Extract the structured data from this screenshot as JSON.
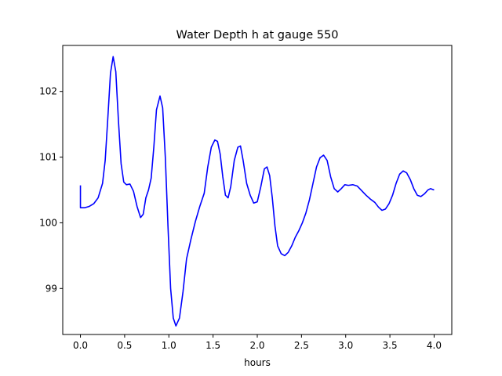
{
  "chart_data": {
    "type": "line",
    "title": "Water Depth h at gauge 550",
    "xlabel": "hours",
    "ylabel": "",
    "xlim": [
      -0.2,
      4.2
    ],
    "ylim": [
      98.3,
      102.7
    ],
    "xticks": [
      0.0,
      0.5,
      1.0,
      1.5,
      2.0,
      2.5,
      3.0,
      3.5,
      4.0
    ],
    "xtick_labels": [
      "0.0",
      "0.5",
      "1.0",
      "1.5",
      "2.0",
      "2.5",
      "3.0",
      "3.5",
      "4.0"
    ],
    "yticks": [
      99,
      100,
      101,
      102
    ],
    "ytick_labels": [
      "99",
      "100",
      "101",
      "102"
    ],
    "grid": false,
    "legend": "none",
    "series": [
      {
        "color": "#0000ff",
        "points": [
          [
            0.0,
            100.57
          ],
          [
            0.0,
            100.23
          ],
          [
            0.05,
            100.23
          ],
          [
            0.1,
            100.25
          ],
          [
            0.15,
            100.29
          ],
          [
            0.2,
            100.38
          ],
          [
            0.25,
            100.6
          ],
          [
            0.28,
            100.95
          ],
          [
            0.31,
            101.6
          ],
          [
            0.34,
            102.28
          ],
          [
            0.37,
            102.53
          ],
          [
            0.4,
            102.3
          ],
          [
            0.43,
            101.55
          ],
          [
            0.46,
            100.9
          ],
          [
            0.49,
            100.62
          ],
          [
            0.52,
            100.58
          ],
          [
            0.56,
            100.59
          ],
          [
            0.6,
            100.48
          ],
          [
            0.64,
            100.25
          ],
          [
            0.68,
            100.08
          ],
          [
            0.71,
            100.13
          ],
          [
            0.74,
            100.38
          ],
          [
            0.77,
            100.5
          ],
          [
            0.8,
            100.68
          ],
          [
            0.83,
            101.15
          ],
          [
            0.86,
            101.72
          ],
          [
            0.9,
            101.93
          ],
          [
            0.93,
            101.75
          ],
          [
            0.96,
            101.0
          ],
          [
            0.99,
            99.95
          ],
          [
            1.02,
            99.0
          ],
          [
            1.05,
            98.55
          ],
          [
            1.08,
            98.43
          ],
          [
            1.12,
            98.55
          ],
          [
            1.16,
            98.95
          ],
          [
            1.2,
            99.45
          ],
          [
            1.25,
            99.75
          ],
          [
            1.3,
            100.02
          ],
          [
            1.35,
            100.25
          ],
          [
            1.4,
            100.45
          ],
          [
            1.44,
            100.85
          ],
          [
            1.48,
            101.15
          ],
          [
            1.52,
            101.26
          ],
          [
            1.55,
            101.24
          ],
          [
            1.58,
            101.05
          ],
          [
            1.61,
            100.7
          ],
          [
            1.64,
            100.42
          ],
          [
            1.67,
            100.38
          ],
          [
            1.7,
            100.55
          ],
          [
            1.74,
            100.95
          ],
          [
            1.78,
            101.15
          ],
          [
            1.81,
            101.17
          ],
          [
            1.84,
            100.95
          ],
          [
            1.88,
            100.6
          ],
          [
            1.92,
            100.42
          ],
          [
            1.96,
            100.3
          ],
          [
            2.0,
            100.32
          ],
          [
            2.04,
            100.55
          ],
          [
            2.08,
            100.82
          ],
          [
            2.11,
            100.85
          ],
          [
            2.14,
            100.72
          ],
          [
            2.17,
            100.38
          ],
          [
            2.2,
            99.95
          ],
          [
            2.23,
            99.65
          ],
          [
            2.27,
            99.53
          ],
          [
            2.31,
            99.5
          ],
          [
            2.35,
            99.55
          ],
          [
            2.39,
            99.65
          ],
          [
            2.43,
            99.78
          ],
          [
            2.47,
            99.88
          ],
          [
            2.51,
            100.0
          ],
          [
            2.55,
            100.15
          ],
          [
            2.59,
            100.35
          ],
          [
            2.63,
            100.6
          ],
          [
            2.67,
            100.85
          ],
          [
            2.71,
            100.99
          ],
          [
            2.75,
            101.03
          ],
          [
            2.79,
            100.95
          ],
          [
            2.83,
            100.7
          ],
          [
            2.87,
            100.52
          ],
          [
            2.91,
            100.47
          ],
          [
            2.95,
            100.52
          ],
          [
            2.99,
            100.58
          ],
          [
            3.03,
            100.57
          ],
          [
            3.08,
            100.58
          ],
          [
            3.13,
            100.56
          ],
          [
            3.18,
            100.49
          ],
          [
            3.23,
            100.42
          ],
          [
            3.28,
            100.36
          ],
          [
            3.33,
            100.31
          ],
          [
            3.37,
            100.24
          ],
          [
            3.41,
            100.19
          ],
          [
            3.45,
            100.21
          ],
          [
            3.49,
            100.29
          ],
          [
            3.53,
            100.42
          ],
          [
            3.57,
            100.6
          ],
          [
            3.61,
            100.74
          ],
          [
            3.65,
            100.79
          ],
          [
            3.69,
            100.76
          ],
          [
            3.73,
            100.66
          ],
          [
            3.77,
            100.52
          ],
          [
            3.81,
            100.42
          ],
          [
            3.85,
            100.4
          ],
          [
            3.89,
            100.44
          ],
          [
            3.93,
            100.5
          ],
          [
            3.96,
            100.52
          ],
          [
            4.0,
            100.5
          ]
        ]
      }
    ]
  }
}
